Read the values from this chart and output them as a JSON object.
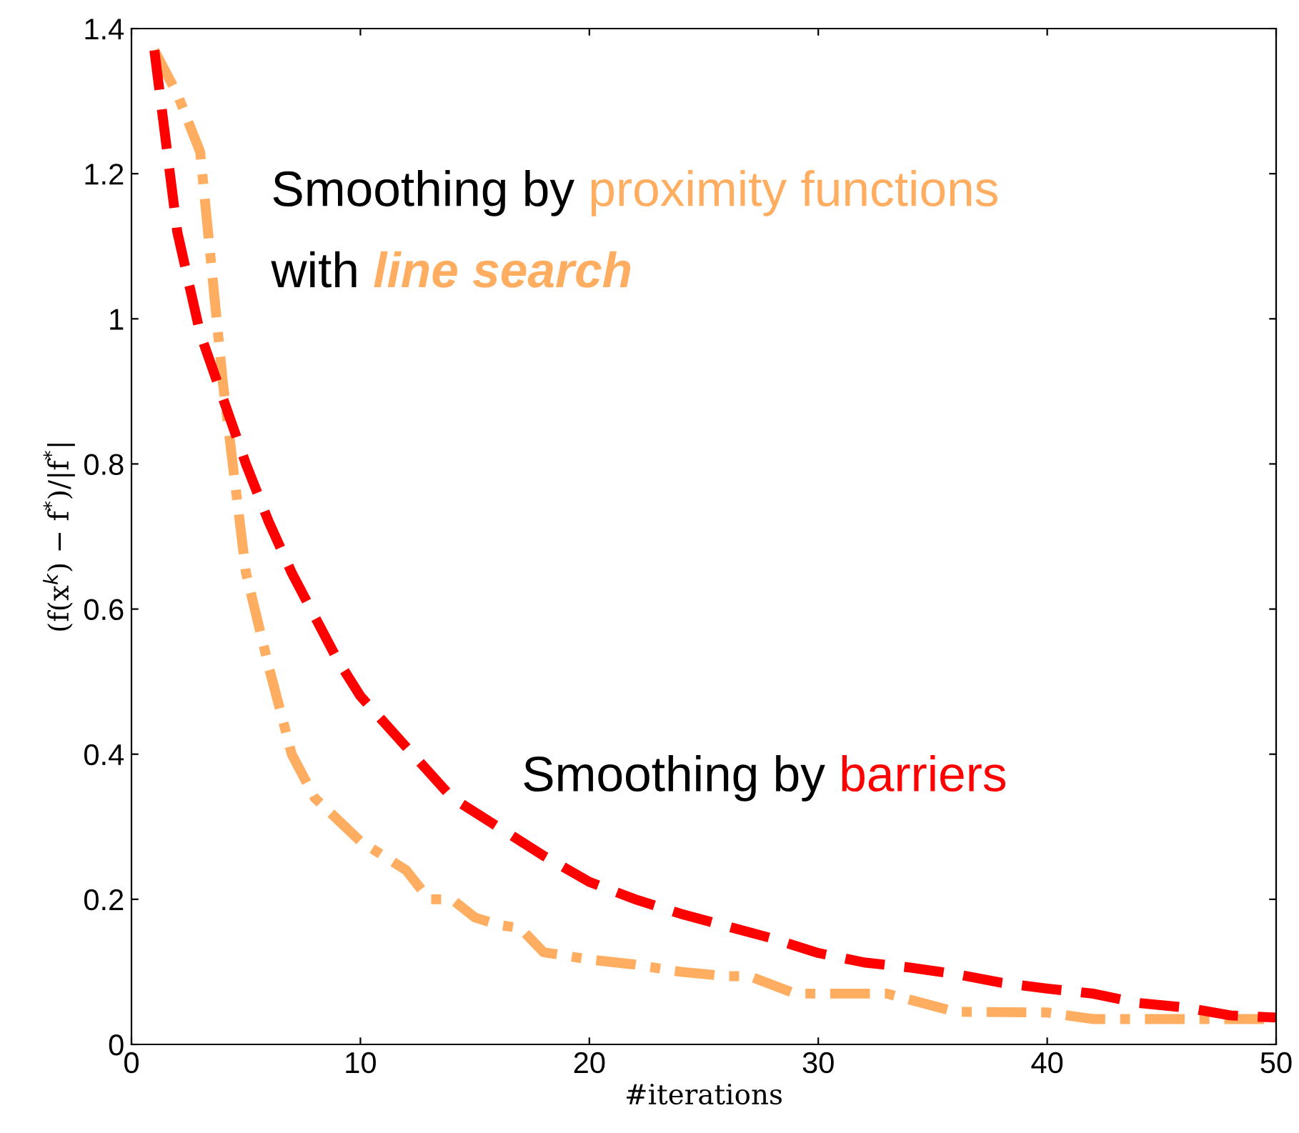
{
  "chart_data": {
    "type": "line",
    "xlabel": "#iterations",
    "ylabel": "(f(x$^{k}$) − f$^{*}$)/|f$^{*}$|",
    "x": [
      1,
      2,
      3,
      4,
      5,
      6,
      7,
      8,
      9,
      10,
      11,
      12,
      13,
      14,
      15,
      16,
      17,
      18,
      20,
      22,
      24,
      26,
      27,
      29,
      33,
      36,
      40,
      42,
      46,
      50
    ],
    "series": [
      {
        "name": "proximity functions",
        "color": "#ffad60",
        "line_style": "dashdot",
        "values": [
          1.37,
          1.31,
          1.23,
          0.91,
          0.65,
          0.52,
          0.4,
          0.34,
          0.31,
          0.28,
          0.26,
          0.24,
          0.2,
          0.2,
          0.175,
          0.165,
          0.16,
          0.127,
          0.117,
          0.11,
          0.1,
          0.094,
          0.094,
          0.07,
          0.07,
          0.045,
          0.044,
          0.035,
          0.035,
          0.035
        ]
      },
      {
        "name": "barriers",
        "color": "#ff0000",
        "line_style": "dashed",
        "x": [
          1,
          2,
          3,
          4,
          5,
          6,
          7,
          8,
          9,
          10,
          12,
          14,
          16,
          18,
          20,
          22,
          24,
          26,
          28,
          30,
          32,
          34,
          36,
          38,
          40,
          42,
          44,
          46,
          48,
          50
        ],
        "values": [
          1.37,
          1.12,
          0.98,
          0.89,
          0.8,
          0.72,
          0.65,
          0.59,
          0.53,
          0.48,
          0.41,
          0.34,
          0.3,
          0.26,
          0.224,
          0.2,
          0.18,
          0.163,
          0.146,
          0.126,
          0.113,
          0.106,
          0.097,
          0.085,
          0.077,
          0.07,
          0.057,
          0.051,
          0.04,
          0.037
        ]
      }
    ],
    "annotations": [
      "Smoothing by ",
      "with ",
      "line search",
      "Smoothing by "
    ],
    "xlim": [
      0,
      50
    ],
    "ylim": [
      0,
      1.4
    ],
    "xticks": [
      0,
      10,
      20,
      30,
      40,
      50
    ],
    "yticks": [
      0,
      0.2,
      0.4,
      0.6,
      0.8,
      1,
      1.2,
      1.4
    ],
    "grid": false,
    "legend": false
  }
}
